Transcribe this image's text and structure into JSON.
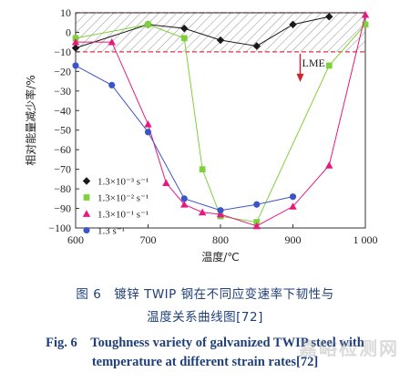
{
  "chart_data": {
    "type": "line",
    "xlabel": "温度/℃",
    "ylabel": "相对能量减少率/%",
    "xlim": [
      600,
      1000
    ],
    "ylim": [
      -100,
      10
    ],
    "xticks": [
      600,
      700,
      800,
      900,
      1000
    ],
    "xtick_labels": [
      "600",
      "700",
      "800",
      "900",
      "1 000"
    ],
    "yticks": [
      10,
      0,
      -10,
      -20,
      -30,
      -40,
      -50,
      -60,
      -70,
      -80,
      -90,
      -100
    ],
    "band": {
      "from": -10,
      "to": 10,
      "label": "LME"
    },
    "legend_position": "lower-left",
    "series": [
      {
        "name": "1.3×10⁻³ s⁻¹",
        "marker": "diamond",
        "color": "#1a1a1a",
        "x": [
          600,
          700,
          750,
          800,
          850,
          900,
          950
        ],
        "y": [
          -8,
          4,
          2,
          -4,
          -7,
          4,
          8
        ]
      },
      {
        "name": "1.3×10⁻² s⁻¹",
        "marker": "square",
        "color": "#7fd13b",
        "x": [
          600,
          700,
          750,
          775,
          800,
          850,
          950,
          1000
        ],
        "y": [
          -3,
          4,
          -3,
          -70,
          -94,
          -97,
          -17,
          4
        ]
      },
      {
        "name": "1.3×10⁻¹ s⁻¹",
        "marker": "triangle",
        "color": "#e8197e",
        "x": [
          600,
          650,
          700,
          725,
          750,
          775,
          800,
          850,
          900,
          950,
          1000
        ],
        "y": [
          -5,
          -5,
          -47,
          -77,
          -88,
          -92,
          -93,
          -99,
          -89,
          -68,
          9
        ]
      },
      {
        "name": "1.3 s⁻¹",
        "marker": "circle",
        "color": "#3b55c8",
        "x": [
          600,
          650,
          700,
          750,
          800,
          850,
          900
        ],
        "y": [
          -17,
          -27,
          -51,
          -85,
          -91,
          -88,
          -84
        ]
      }
    ]
  },
  "caption": {
    "cn_line1": "图 6　镀锌 TWIP 钢在不同应变速率下韧性与",
    "cn_line2": "温度关系曲线图[72]",
    "en_line1": "Fig. 6　Toughness variety of galvanized TWIP steel with",
    "en_line2": "temperature at different strain rates[72]"
  },
  "watermark": "嘉峪检测网",
  "colors": {
    "band_border": "#e0304a",
    "arrow": "#d61f2a"
  }
}
